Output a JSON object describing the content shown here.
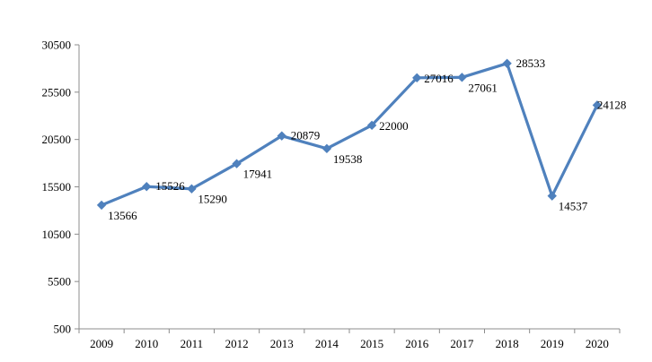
{
  "chart_data": {
    "type": "line",
    "title": "",
    "xlabel": "",
    "ylabel": "",
    "x": [
      "2009",
      "2010",
      "2011",
      "2012",
      "2013",
      "2014",
      "2015",
      "2016",
      "2017",
      "2018",
      "2019",
      "2020"
    ],
    "series": [
      {
        "values": [
          13566,
          15526,
          15290,
          17941,
          20879,
          19538,
          22000,
          27016,
          27061,
          28533,
          14537,
          24128
        ],
        "labels": [
          "13566",
          "15526",
          "15290",
          "17941",
          "20879",
          "19538",
          "22000",
          "27016",
          "27061",
          "28533",
          "14537",
          "24128"
        ],
        "color": "#4F81BD",
        "marker": "diamond"
      }
    ],
    "ylim": [
      500,
      30500
    ],
    "yticks": [
      "500",
      "5500",
      "10500",
      "15500",
      "20500",
      "25500",
      "30500"
    ],
    "grid": false,
    "legend": "none"
  }
}
